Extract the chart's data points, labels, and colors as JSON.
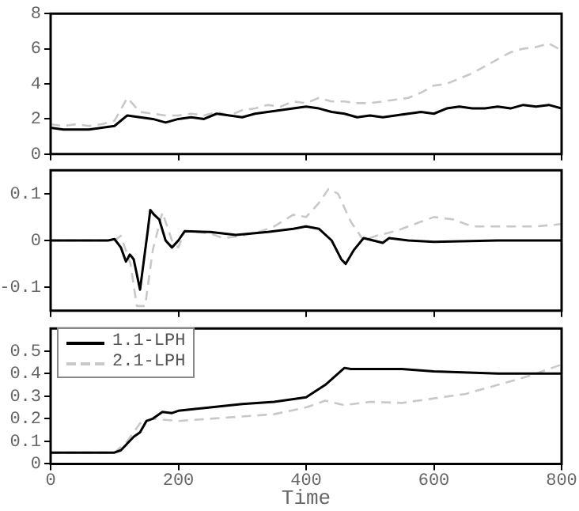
{
  "chart_data": [
    {
      "type": "line",
      "xlim": [
        0,
        800
      ],
      "xticks": [
        0,
        200,
        400,
        600,
        800
      ],
      "ylim": [
        0,
        8
      ],
      "yticks": [
        0,
        2,
        4,
        6,
        8
      ],
      "tick_labels": "y",
      "grid": false,
      "legend": false,
      "marker": "none",
      "series": [
        {
          "color": "#000000",
          "line_style": "solid",
          "x": [
            0,
            20,
            40,
            60,
            80,
            100,
            120,
            140,
            160,
            180,
            200,
            220,
            240,
            260,
            280,
            300,
            320,
            340,
            360,
            380,
            400,
            420,
            440,
            460,
            480,
            500,
            520,
            540,
            560,
            580,
            600,
            620,
            640,
            660,
            680,
            700,
            720,
            740,
            760,
            780,
            800
          ],
          "values": [
            1.5,
            1.4,
            1.4,
            1.4,
            1.5,
            1.6,
            2.2,
            2.1,
            2.0,
            1.8,
            2.0,
            2.1,
            2.0,
            2.3,
            2.2,
            2.1,
            2.3,
            2.4,
            2.5,
            2.6,
            2.7,
            2.6,
            2.4,
            2.3,
            2.1,
            2.2,
            2.1,
            2.2,
            2.3,
            2.4,
            2.3,
            2.6,
            2.7,
            2.6,
            2.6,
            2.7,
            2.6,
            2.8,
            2.7,
            2.8,
            2.6
          ]
        },
        {
          "color": "#c8c8c8",
          "line_style": "dashed",
          "x": [
            0,
            20,
            40,
            60,
            80,
            100,
            120,
            140,
            160,
            180,
            200,
            220,
            240,
            260,
            280,
            300,
            320,
            340,
            360,
            380,
            400,
            420,
            440,
            460,
            480,
            500,
            520,
            540,
            560,
            580,
            600,
            620,
            640,
            660,
            680,
            700,
            720,
            740,
            760,
            780,
            800
          ],
          "values": [
            1.7,
            1.6,
            1.7,
            1.6,
            1.7,
            1.9,
            3.2,
            2.4,
            2.3,
            2.2,
            2.2,
            2.3,
            2.2,
            2.4,
            2.2,
            2.5,
            2.6,
            2.8,
            2.7,
            3.0,
            2.9,
            3.2,
            3.0,
            3.0,
            2.9,
            2.9,
            3.0,
            3.1,
            3.2,
            3.5,
            3.9,
            4.0,
            4.3,
            4.6,
            5.0,
            5.4,
            5.8,
            6.0,
            6.1,
            6.3,
            5.9
          ]
        }
      ]
    },
    {
      "type": "line",
      "xlim": [
        0,
        800
      ],
      "xticks": [
        0,
        200,
        400,
        600,
        800
      ],
      "ylim": [
        -0.15,
        0.15
      ],
      "yticks": [
        -0.1,
        0,
        0.1
      ],
      "tick_labels": "y",
      "grid": false,
      "legend": false,
      "marker": "none",
      "series": [
        {
          "color": "#000000",
          "line_style": "solid",
          "x": [
            0,
            90,
            100,
            110,
            118,
            124,
            130,
            140,
            152,
            156,
            162,
            170,
            180,
            190,
            200,
            210,
            250,
            290,
            340,
            380,
            400,
            420,
            440,
            455,
            462,
            475,
            490,
            520,
            530,
            560,
            600,
            700,
            800
          ],
          "values": [
            0,
            0,
            0.003,
            -0.015,
            -0.045,
            -0.03,
            -0.04,
            -0.105,
            0.02,
            0.065,
            0.055,
            0.045,
            0,
            -0.015,
            0,
            0.02,
            0.018,
            0.012,
            0.018,
            0.025,
            0.03,
            0.025,
            0,
            -0.04,
            -0.05,
            -0.02,
            0.005,
            -0.005,
            0.005,
            0,
            -0.003,
            0,
            0
          ]
        },
        {
          "color": "#c8c8c8",
          "line_style": "dashed",
          "x": [
            0,
            100,
            110,
            125,
            135,
            148,
            160,
            175,
            190,
            200,
            210,
            250,
            270,
            300,
            330,
            350,
            380,
            400,
            420,
            435,
            450,
            470,
            490,
            510,
            540,
            580,
            600,
            630,
            660,
            700,
            760,
            800
          ],
          "values": [
            0,
            0,
            0.01,
            -0.05,
            -0.14,
            -0.14,
            -0.02,
            0.06,
            0,
            -0.015,
            0.02,
            0.015,
            0.005,
            0.01,
            0.02,
            0.03,
            0.055,
            0.05,
            0.08,
            0.11,
            0.1,
            0.04,
            0,
            0.01,
            0.02,
            0.04,
            0.05,
            0.045,
            0.03,
            0.03,
            0.03,
            0.035
          ]
        }
      ]
    },
    {
      "type": "line",
      "xlabel": "Time",
      "xlim": [
        0,
        800
      ],
      "xticks": [
        0,
        200,
        400,
        600,
        800
      ],
      "ylim": [
        0,
        0.6
      ],
      "yticks": [
        0,
        0.1,
        0.2,
        0.3,
        0.4,
        0.5
      ],
      "grid": false,
      "legend": "top left",
      "marker": "none",
      "series": [
        {
          "name": "1.1-LPH",
          "color": "#000000",
          "line_style": "solid",
          "x": [
            0,
            100,
            110,
            130,
            140,
            150,
            160,
            175,
            190,
            200,
            250,
            300,
            350,
            400,
            430,
            460,
            470,
            550,
            600,
            700,
            800
          ],
          "values": [
            0.05,
            0.05,
            0.06,
            0.12,
            0.14,
            0.19,
            0.2,
            0.23,
            0.225,
            0.235,
            0.25,
            0.265,
            0.275,
            0.295,
            0.35,
            0.425,
            0.42,
            0.42,
            0.41,
            0.4,
            0.4
          ]
        },
        {
          "name": "2.1-LPH",
          "color": "#c8c8c8",
          "line_style": "dashed",
          "x": [
            0,
            100,
            120,
            140,
            160,
            200,
            250,
            300,
            350,
            400,
            430,
            460,
            500,
            550,
            600,
            650,
            700,
            750,
            800
          ],
          "values": [
            0.05,
            0.05,
            0.1,
            0.18,
            0.2,
            0.19,
            0.2,
            0.21,
            0.22,
            0.25,
            0.28,
            0.26,
            0.275,
            0.27,
            0.29,
            0.31,
            0.35,
            0.39,
            0.44
          ]
        }
      ]
    }
  ]
}
